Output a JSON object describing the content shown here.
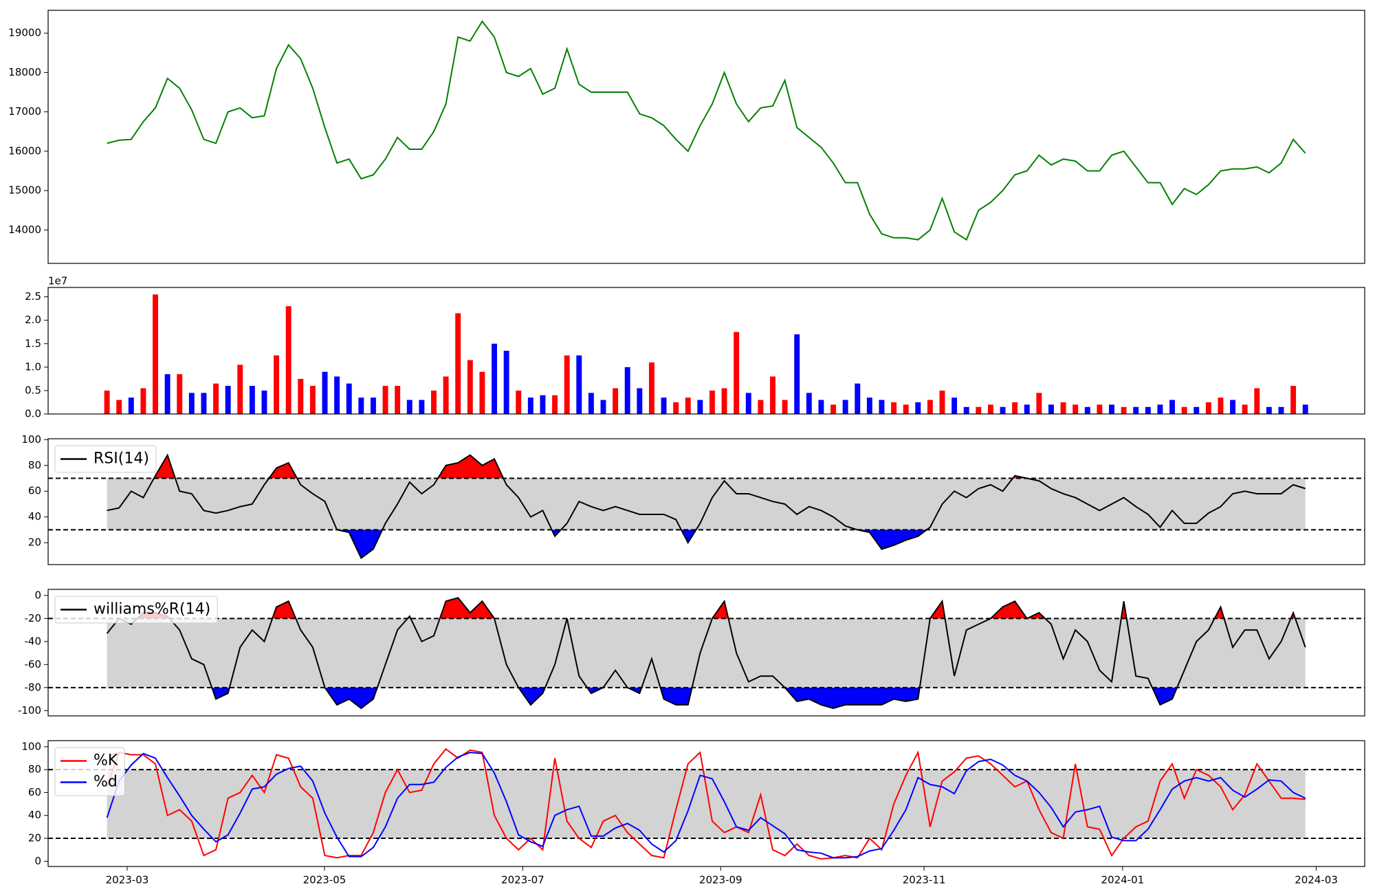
{
  "chart_data": [
    {
      "type": "line",
      "color": "#008000",
      "xlim": [
        -4.86,
        103.9
      ],
      "values": [
        16200,
        16280,
        16300,
        16750,
        17100,
        17850,
        17600,
        17050,
        16300,
        16200,
        17000,
        17100,
        16850,
        16900,
        18100,
        18700,
        18350,
        17600,
        16600,
        15700,
        15800,
        15300,
        15400,
        15800,
        16350,
        16050,
        16050,
        16500,
        17200,
        18900,
        18800,
        19300,
        18900,
        18000,
        17900,
        18100,
        17450,
        17600,
        18600,
        17700,
        17500,
        17500,
        17500,
        17500,
        16950,
        16850,
        16650,
        16300,
        16000,
        16650,
        17200,
        18000,
        17200,
        16750,
        17100,
        17150,
        17800,
        16600,
        16350,
        16100,
        15700,
        15200,
        15200,
        14400,
        13900,
        13800,
        13800,
        13750,
        14000,
        14800,
        13950,
        13750,
        14500,
        14700,
        15000,
        15400,
        15500,
        15900,
        15650,
        15800,
        15750,
        15500,
        15500,
        15900,
        16000,
        15600,
        15200,
        15200,
        14650,
        15050,
        14900,
        15150,
        15500,
        15550,
        15550,
        15600,
        15450,
        15700,
        16300,
        15950
      ],
      "ylim": [
        13150,
        19580
      ],
      "yticks": [
        14000,
        15000,
        16000,
        17000,
        18000,
        19000
      ]
    },
    {
      "type": "bar",
      "offset_label": "1e7",
      "xlim": [
        -4.86,
        103.9
      ],
      "values": [
        0.5,
        0.3,
        0.35,
        0.55,
        2.55,
        0.85,
        0.85,
        0.45,
        0.45,
        0.65,
        0.6,
        1.05,
        0.6,
        0.5,
        1.25,
        2.3,
        0.75,
        0.6,
        0.9,
        0.8,
        0.65,
        0.35,
        0.35,
        0.6,
        0.6,
        0.3,
        0.3,
        0.5,
        0.8,
        2.15,
        1.15,
        0.9,
        1.5,
        1.35,
        0.5,
        0.35,
        0.4,
        0.4,
        1.25,
        1.25,
        0.45,
        0.3,
        0.55,
        1.0,
        0.55,
        1.1,
        0.35,
        0.25,
        0.35,
        0.3,
        0.5,
        0.55,
        1.75,
        0.45,
        0.3,
        0.8,
        0.3,
        1.7,
        0.45,
        0.3,
        0.2,
        0.3,
        0.65,
        0.35,
        0.3,
        0.25,
        0.2,
        0.25,
        0.3,
        0.5,
        0.35,
        0.15,
        0.15,
        0.2,
        0.15,
        0.25,
        0.2,
        0.45,
        0.2,
        0.25,
        0.2,
        0.15,
        0.2,
        0.2,
        0.15,
        0.15,
        0.15,
        0.2,
        0.3,
        0.15,
        0.15,
        0.25,
        0.35,
        0.3,
        0.2,
        0.55,
        0.15,
        0.15,
        0.6,
        0.2
      ],
      "colors": [
        "red",
        "red",
        "blue",
        "red",
        "red",
        "blue",
        "red",
        "blue",
        "blue",
        "red",
        "blue",
        "red",
        "blue",
        "blue",
        "red",
        "red",
        "red",
        "red",
        "blue",
        "blue",
        "blue",
        "blue",
        "blue",
        "red",
        "red",
        "blue",
        "blue",
        "red",
        "red",
        "red",
        "red",
        "red",
        "blue",
        "blue",
        "red",
        "blue",
        "blue",
        "red",
        "red",
        "blue",
        "blue",
        "blue",
        "red",
        "blue",
        "blue",
        "red",
        "blue",
        "red",
        "red",
        "blue",
        "red",
        "red",
        "red",
        "blue",
        "red",
        "red",
        "red",
        "blue",
        "blue",
        "blue",
        "red",
        "blue",
        "blue",
        "blue",
        "blue",
        "red",
        "red",
        "blue",
        "red",
        "red",
        "blue",
        "blue",
        "red",
        "red",
        "blue",
        "red",
        "blue",
        "red",
        "blue",
        "red",
        "red",
        "blue",
        "red",
        "blue",
        "red",
        "blue",
        "blue",
        "blue",
        "blue",
        "red",
        "blue",
        "red",
        "red",
        "blue",
        "red",
        "red",
        "blue",
        "blue",
        "red",
        "blue"
      ],
      "ylim": [
        0,
        2.7
      ],
      "yticks": [
        {
          "value": 0,
          "label": "0.0"
        },
        {
          "value": 0.5,
          "label": "0.5"
        },
        {
          "value": 1,
          "label": "1.0"
        },
        {
          "value": 1.5,
          "label": "1.5"
        },
        {
          "value": 2,
          "label": "2.0"
        },
        {
          "value": 2.5,
          "label": "2.5"
        }
      ]
    },
    {
      "type": "line",
      "legend": "upper left",
      "xlim": [
        -4.86,
        103.9
      ],
      "series": [
        {
          "name": "RSI(14)",
          "color": "#000000",
          "values": [
            45,
            47,
            60,
            55,
            72,
            88,
            60,
            58,
            45,
            43,
            45,
            48,
            50,
            65,
            78,
            82,
            65,
            58,
            52,
            30,
            28,
            8,
            15,
            35,
            50,
            67,
            58,
            65,
            80,
            82,
            88,
            80,
            85,
            65,
            55,
            40,
            45,
            25,
            35,
            52,
            48,
            45,
            48,
            45,
            42,
            42,
            42,
            38,
            20,
            35,
            55,
            68,
            58,
            58,
            55,
            52,
            50,
            42,
            48,
            45,
            40,
            33,
            30,
            28,
            15,
            18,
            22,
            25,
            32,
            50,
            60,
            55,
            62,
            65,
            60,
            72,
            70,
            68,
            62,
            58,
            55,
            50,
            45,
            50,
            55,
            48,
            42,
            32,
            45,
            35,
            35,
            43,
            48,
            58,
            60,
            58,
            58,
            58,
            65,
            62
          ]
        }
      ],
      "thresholds": [
        30,
        70
      ],
      "fill": {
        "band": "#d3d3d3",
        "above": "#ff0000",
        "below": "#0000ff"
      },
      "ylim": [
        3,
        100.7
      ],
      "yticks": [
        20,
        40,
        60,
        80,
        100
      ]
    },
    {
      "type": "line",
      "legend": "upper left",
      "xlim": [
        -4.86,
        103.9
      ],
      "series": [
        {
          "name": "williams%R(14)",
          "color": "#000000",
          "values": [
            -33,
            -20,
            -25,
            -15,
            -15,
            -18,
            -30,
            -55,
            -60,
            -90,
            -85,
            -45,
            -30,
            -40,
            -10,
            -5,
            -30,
            -45,
            -80,
            -95,
            -90,
            -98,
            -90,
            -60,
            -30,
            -18,
            -40,
            -35,
            -5,
            -2,
            -15,
            -5,
            -20,
            -60,
            -80,
            -95,
            -85,
            -60,
            -20,
            -70,
            -85,
            -80,
            -65,
            -80,
            -85,
            -55,
            -90,
            -95,
            -95,
            -50,
            -20,
            -5,
            -50,
            -75,
            -70,
            -70,
            -80,
            -92,
            -90,
            -95,
            -98,
            -95,
            -95,
            -95,
            -95,
            -90,
            -92,
            -90,
            -20,
            -5,
            -70,
            -30,
            -25,
            -20,
            -10,
            -5,
            -20,
            -15,
            -25,
            -55,
            -30,
            -40,
            -65,
            -75,
            -5,
            -70,
            -72,
            -95,
            -90,
            -65,
            -40,
            -30,
            -10,
            -45,
            -30,
            -30,
            -55,
            -40,
            -15,
            -45
          ]
        }
      ],
      "thresholds": [
        -80,
        -20
      ],
      "fill": {
        "band": "#d3d3d3",
        "above": "#ff0000",
        "below": "#0000ff"
      },
      "ylim": [
        -104.6,
        5.3
      ],
      "yticks": [
        -100,
        -80,
        -60,
        -40,
        -20,
        0
      ]
    },
    {
      "type": "line",
      "legend": "upper left",
      "xlim": [
        -4.86,
        103.9
      ],
      "series": [
        {
          "name": "%K",
          "color": "#ff0000",
          "values": [
            65,
            95,
            93,
            93,
            85,
            40,
            45,
            35,
            5,
            10,
            55,
            60,
            75,
            60,
            93,
            90,
            65,
            55,
            5,
            3,
            5,
            5,
            25,
            60,
            80,
            60,
            62,
            85,
            98,
            90,
            97,
            95,
            40,
            20,
            10,
            20,
            10,
            90,
            35,
            20,
            12,
            35,
            40,
            25,
            15,
            5,
            3,
            45,
            85,
            95,
            35,
            25,
            30,
            25,
            58,
            10,
            5,
            15,
            5,
            2,
            3,
            5,
            3,
            20,
            10,
            50,
            75,
            95,
            30,
            70,
            78,
            90,
            92,
            85,
            75,
            65,
            70,
            45,
            25,
            20,
            85,
            30,
            28,
            5,
            20,
            30,
            35,
            70,
            85,
            55,
            80,
            75,
            65,
            45,
            58,
            85,
            70,
            55,
            55,
            54
          ]
        },
        {
          "name": "%d",
          "color": "#0000ff",
          "values": [
            38,
            70,
            84,
            94,
            90,
            73,
            57,
            40,
            28,
            17,
            23,
            42,
            63,
            65,
            76,
            81,
            83,
            70,
            42,
            21,
            4,
            4,
            12,
            30,
            55,
            67,
            67,
            69,
            82,
            91,
            95,
            94,
            77,
            52,
            23,
            17,
            13,
            40,
            45,
            48,
            22,
            22,
            29,
            33,
            27,
            15,
            8,
            18,
            44,
            75,
            72,
            52,
            30,
            27,
            38,
            31,
            24,
            10,
            8,
            7,
            3,
            3,
            4,
            9,
            11,
            27,
            45,
            73,
            67,
            65,
            59,
            79,
            87,
            89,
            84,
            75,
            70,
            60,
            47,
            30,
            43,
            45,
            48,
            21,
            18,
            18,
            28,
            45,
            63,
            70,
            73,
            70,
            73,
            62,
            56,
            63,
            71,
            70,
            60,
            55
          ]
        }
      ],
      "thresholds": [
        20,
        80
      ],
      "fill": {
        "band": "#d3d3d3"
      },
      "ylim": [
        -4.6,
        105.3
      ],
      "yticks": [
        0,
        20,
        40,
        60,
        80,
        100
      ],
      "xticks": [
        {
          "value": 1.67,
          "label": "2023-03"
        },
        {
          "value": 17.97,
          "label": "2023-05"
        },
        {
          "value": 34.35,
          "label": "2023-07"
        },
        {
          "value": 50.7,
          "label": "2023-09"
        },
        {
          "value": 67.5,
          "label": "2023-11"
        },
        {
          "value": 83.9,
          "label": "2024-01"
        },
        {
          "value": 99.9,
          "label": "2024-03"
        }
      ]
    }
  ]
}
